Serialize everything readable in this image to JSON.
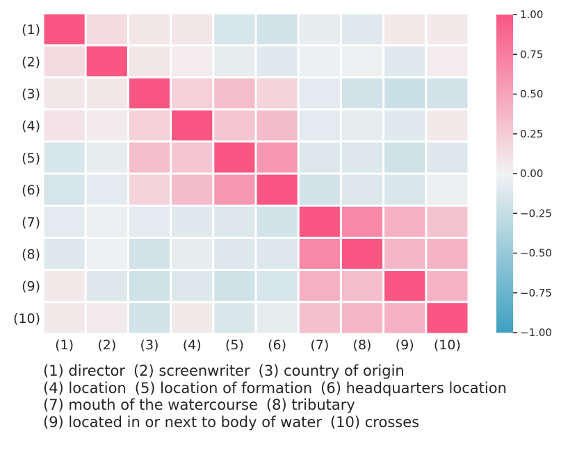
{
  "chart_data": {
    "type": "heatmap",
    "row_labels": [
      "(1)",
      "(2)",
      "(3)",
      "(4)",
      "(5)",
      "(6)",
      "(7)",
      "(8)",
      "(9)",
      "(10)"
    ],
    "col_labels": [
      "(1)",
      "(2)",
      "(3)",
      "(4)",
      "(5)",
      "(6)",
      "(7)",
      "(8)",
      "(9)",
      "(10)"
    ],
    "values": [
      [
        1.0,
        0.15,
        0.08,
        0.08,
        -0.15,
        -0.18,
        -0.06,
        -0.1,
        0.06,
        0.06
      ],
      [
        0.15,
        1.0,
        0.08,
        0.04,
        -0.06,
        -0.1,
        -0.04,
        -0.02,
        -0.1,
        0.04
      ],
      [
        0.08,
        0.08,
        1.0,
        0.22,
        0.34,
        0.2,
        -0.08,
        -0.18,
        -0.22,
        -0.18
      ],
      [
        0.1,
        0.05,
        0.22,
        1.0,
        0.28,
        0.35,
        -0.08,
        -0.06,
        -0.1,
        0.06
      ],
      [
        -0.15,
        -0.06,
        0.34,
        0.28,
        1.0,
        0.58,
        -0.12,
        -0.12,
        -0.2,
        -0.12
      ],
      [
        -0.16,
        -0.08,
        0.2,
        0.35,
        0.58,
        1.0,
        -0.18,
        -0.12,
        -0.14,
        -0.04
      ],
      [
        -0.08,
        -0.04,
        -0.08,
        -0.1,
        -0.12,
        -0.18,
        1.0,
        0.68,
        0.42,
        0.3
      ],
      [
        -0.12,
        -0.02,
        -0.18,
        -0.06,
        -0.12,
        -0.12,
        0.68,
        1.0,
        0.38,
        0.4
      ],
      [
        0.06,
        -0.12,
        -0.2,
        -0.12,
        -0.2,
        -0.16,
        0.42,
        0.34,
        1.0,
        0.4
      ],
      [
        0.06,
        0.05,
        -0.18,
        0.06,
        -0.14,
        -0.06,
        0.32,
        0.38,
        0.42,
        1.0
      ]
    ],
    "vmin": -1.0,
    "vmax": 1.0,
    "colorbar_ticks": [
      "1.00",
      "0.75",
      "0.50",
      "0.25",
      "0.00",
      "−0.25",
      "−0.50",
      "−0.75",
      "−1.00"
    ],
    "colorbar_tick_values": [
      1.0,
      0.75,
      0.5,
      0.25,
      0.0,
      -0.25,
      -0.5,
      -0.75,
      -1.0
    ],
    "colormap": {
      "negative": "#3ea0c0",
      "neutral": "#f2f2f2",
      "positive": "#f95682"
    },
    "grid_color": "#ffffff"
  },
  "legend": {
    "lines": [
      [
        "(1) director",
        "(2) screenwriter",
        "(3) country of origin"
      ],
      [
        "(4) location",
        "(5) location of formation",
        "(6) headquarters location"
      ],
      [
        "(7) mouth of the watercourse",
        "(8) tributary"
      ],
      [
        "(9) located in or next to body of water",
        "(10) crosses"
      ]
    ]
  }
}
